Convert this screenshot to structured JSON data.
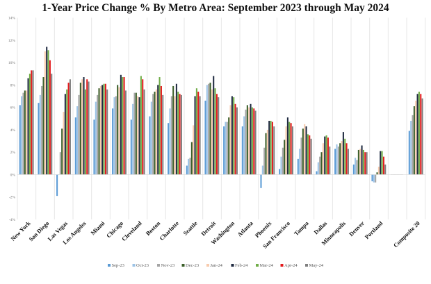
{
  "chart_data": {
    "type": "bar",
    "title": "1-Year Price Change % By Metro Area: September 2023 through May 2024",
    "xlabel": "",
    "ylabel": "",
    "ylim": [
      -4,
      14
    ],
    "yticks": [
      "-4%",
      "-2%",
      "0%",
      "2%",
      "4%",
      "6%",
      "8%",
      "10%",
      "12%",
      "14%"
    ],
    "ytick_values": [
      -4,
      -2,
      0,
      2,
      4,
      6,
      8,
      10,
      12,
      14
    ],
    "grid": "vertical lines between categories",
    "legend": "bottom",
    "categories": [
      "New York",
      "San Diego",
      "Las Vegas",
      "Los Angeles",
      "Miami",
      "Chicago",
      "Cleveland",
      "Boston",
      "Charlotte",
      "Seattle",
      "Detroit",
      "Washington",
      "Atlanta",
      "Phoenix",
      "San Francisco",
      "Tampa",
      "Dallas",
      "Minneapolis",
      "Denver",
      "Portland",
      "",
      "Composite 20"
    ],
    "series": [
      {
        "name": "Sep-23",
        "color": "#5b9bd5",
        "values": [
          6.2,
          6.4,
          -1.9,
          5.1,
          4.9,
          5.9,
          4.9,
          5.2,
          4.6,
          0.8,
          6.6,
          4.3,
          4.3,
          -1.2,
          0.5,
          1.4,
          0.3,
          2.3,
          0.9,
          -0.6,
          0,
          3.9
        ]
      },
      {
        "name": "Oct-23",
        "color": "#9dc3e6",
        "values": [
          7.0,
          7.1,
          0.0,
          6.1,
          6.5,
          6.9,
          6.3,
          6.5,
          5.9,
          1.4,
          8.0,
          4.7,
          5.2,
          0.8,
          1.6,
          2.3,
          1.1,
          2.7,
          1.5,
          -0.7,
          0,
          4.8
        ]
      },
      {
        "name": "Nov-23",
        "color": "#a5a5a5",
        "values": [
          7.3,
          7.9,
          2.0,
          7.1,
          7.1,
          7.0,
          7.3,
          7.2,
          7.0,
          1.5,
          8.1,
          4.7,
          5.8,
          2.4,
          2.4,
          3.3,
          1.6,
          2.5,
          1.3,
          -0.7,
          0,
          5.3
        ]
      },
      {
        "name": "Dec-23",
        "color": "#3b5f2a",
        "values": [
          7.5,
          8.7,
          4.1,
          8.2,
          7.7,
          8.0,
          7.3,
          7.4,
          7.9,
          2.9,
          8.2,
          5.1,
          6.2,
          3.7,
          3.1,
          4.1,
          2.0,
          2.8,
          2.2,
          0.2,
          0,
          6.1
        ]
      },
      {
        "name": "Jan-24",
        "color": "#f8cbad",
        "values": [
          7.5,
          11.0,
          5.6,
          8.5,
          7.9,
          7.8,
          7.0,
          7.6,
          7.0,
          4.4,
          7.6,
          6.2,
          6.0,
          4.0,
          4.3,
          4.5,
          2.8,
          3.0,
          2.3,
          0.7,
          0,
          6.6
        ]
      },
      {
        "name": "Feb-24",
        "color": "#1f2a40",
        "values": [
          8.6,
          11.4,
          7.2,
          8.7,
          8.0,
          8.9,
          6.9,
          8.0,
          8.1,
          7.0,
          8.8,
          7.0,
          6.3,
          4.8,
          5.1,
          4.3,
          3.4,
          3.8,
          2.6,
          2.1,
          0,
          7.2
        ]
      },
      {
        "name": "Mar-24",
        "color": "#70ad47",
        "values": [
          9.0,
          11.1,
          7.6,
          7.6,
          8.1,
          8.7,
          8.8,
          8.7,
          7.4,
          7.7,
          7.7,
          6.9,
          6.0,
          4.8,
          4.7,
          3.6,
          3.5,
          3.2,
          2.2,
          2.1,
          0,
          7.4
        ]
      },
      {
        "name": "Apr-24",
        "color": "#e31a1c",
        "values": [
          9.3,
          10.2,
          8.2,
          8.5,
          8.1,
          8.7,
          8.5,
          7.9,
          7.2,
          7.4,
          7.2,
          6.3,
          5.9,
          4.7,
          4.6,
          3.5,
          3.3,
          2.8,
          2.0,
          1.6,
          0,
          7.2
        ]
      },
      {
        "name": "May-24",
        "color": "#808080",
        "values": [
          9.3,
          9.0,
          8.5,
          8.3,
          7.6,
          7.5,
          7.6,
          7.1,
          7.1,
          7.0,
          6.9,
          6.0,
          5.7,
          4.3,
          4.3,
          3.2,
          2.5,
          2.3,
          2.0,
          0.9,
          0,
          6.8
        ]
      }
    ]
  }
}
